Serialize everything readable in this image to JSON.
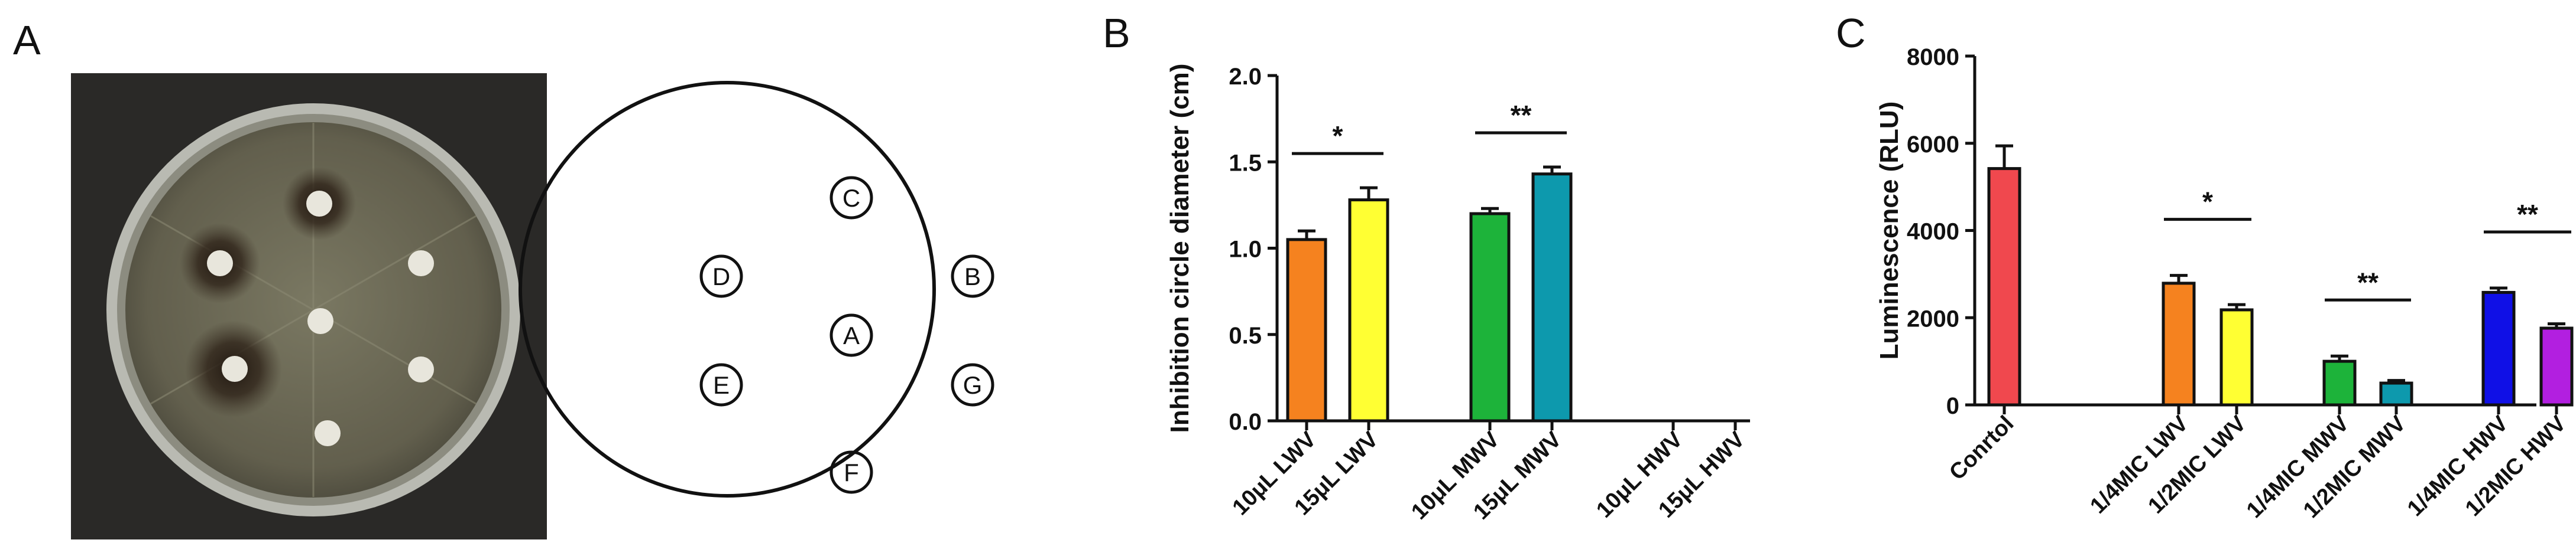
{
  "panels": {
    "a": {
      "letter": "A"
    },
    "b": {
      "letter": "B"
    },
    "c": {
      "letter": "C"
    }
  },
  "plate_diagram": {
    "well_labels": [
      "C",
      "D",
      "B",
      "A",
      "E",
      "G",
      "F"
    ]
  },
  "colors": {
    "orange": "#f5821f",
    "yellow": "#ffff33",
    "green": "#1db33a",
    "teal": "#0d99ad",
    "red": "#f0484e",
    "blue": "#1010e6",
    "purple": "#b21fe0",
    "plate_background": "#2a2927",
    "agar": "#6d6b58"
  },
  "chart_data": [
    {
      "type": "bar",
      "panel": "B",
      "ylabel": "Inhibition circle diameter (cm)",
      "ylim": [
        0,
        2.0
      ],
      "yticks": [
        "0.0",
        "0.5",
        "1.0",
        "1.5",
        "2.0"
      ],
      "categories": [
        "10μL LWV",
        "15μL LWV",
        "10μL MWV",
        "15μL MWV",
        "10μL HWV",
        "15μL HWV"
      ],
      "values": [
        1.05,
        1.28,
        1.2,
        1.43,
        0,
        0
      ],
      "errors": [
        0.05,
        0.07,
        0.03,
        0.04,
        0,
        0
      ],
      "bar_colors": [
        "#f5821f",
        "#ffff33",
        "#1db33a",
        "#0d99ad",
        "#ffffff",
        "#ffffff"
      ],
      "significance": [
        {
          "label": "*",
          "from": 0,
          "to": 1
        },
        {
          "label": "**",
          "from": 2,
          "to": 3
        }
      ]
    },
    {
      "type": "bar",
      "panel": "C",
      "ylabel": "Luminescence (RLU)",
      "ylim": [
        0,
        8000
      ],
      "yticks": [
        "0",
        "2000",
        "4000",
        "6000",
        "8000"
      ],
      "categories": [
        "Conrtol",
        "1/4MIC LWV",
        "1/2MIC LWV",
        "1/4MIC MWV",
        "1/2MIC MWV",
        "1/4MIC HWV",
        "1/2MIC HWV"
      ],
      "values": [
        5420,
        2790,
        2180,
        1000,
        500,
        2580,
        1760
      ],
      "errors": [
        520,
        180,
        120,
        120,
        60,
        100,
        100
      ],
      "bar_colors": [
        "#f0484e",
        "#f5821f",
        "#ffff33",
        "#1db33a",
        "#0d99ad",
        "#1010e6",
        "#b21fe0"
      ],
      "significance": [
        {
          "label": "*",
          "from": 1,
          "to": 2
        },
        {
          "label": "**",
          "from": 3,
          "to": 4
        },
        {
          "label": "**",
          "from": 5,
          "to": 6
        }
      ]
    }
  ]
}
